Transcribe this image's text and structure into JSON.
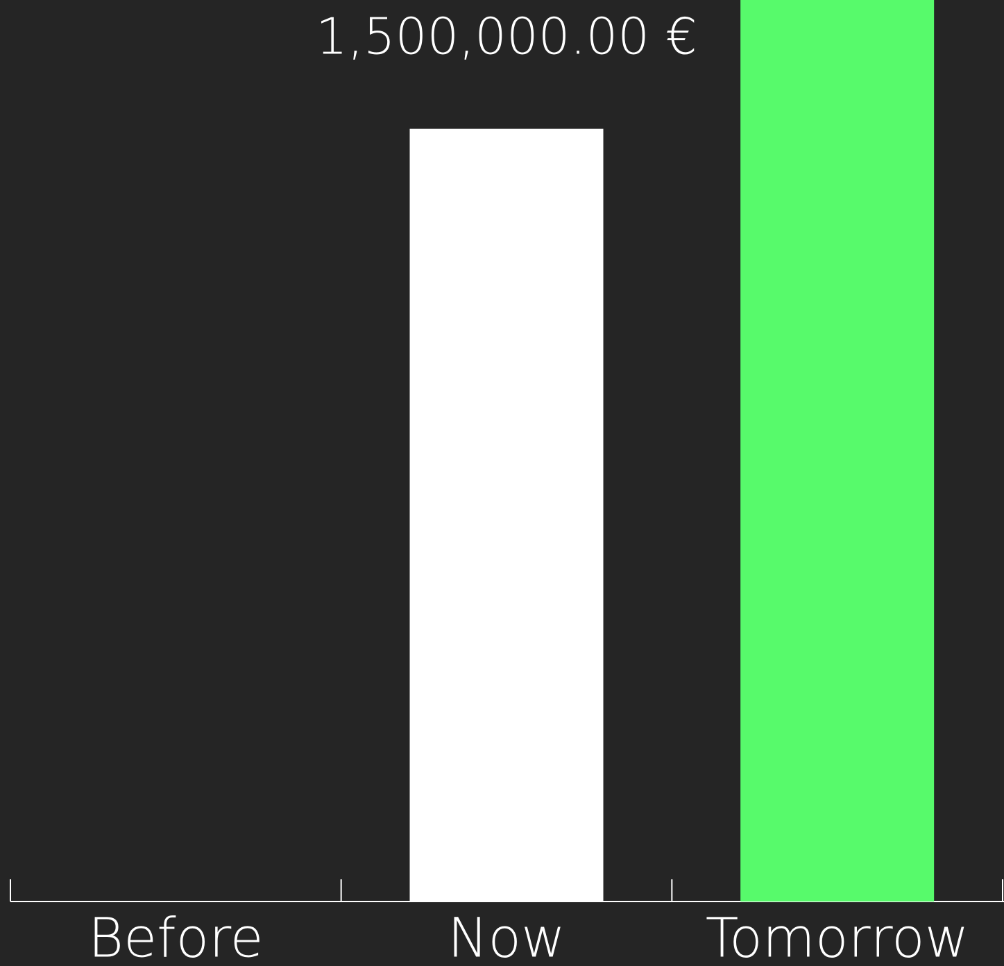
{
  "chart_data": {
    "type": "bar",
    "categories": [
      "Before",
      "Now",
      "Tomorrow"
    ],
    "values": [
      0,
      1500000,
      1750000
    ],
    "value_labels": [
      null,
      "1,500,000.00 €",
      null
    ],
    "colors": [
      "#ffffff",
      "#ffffff",
      "#57fa6b"
    ],
    "ylim": [
      0,
      1750000
    ]
  }
}
